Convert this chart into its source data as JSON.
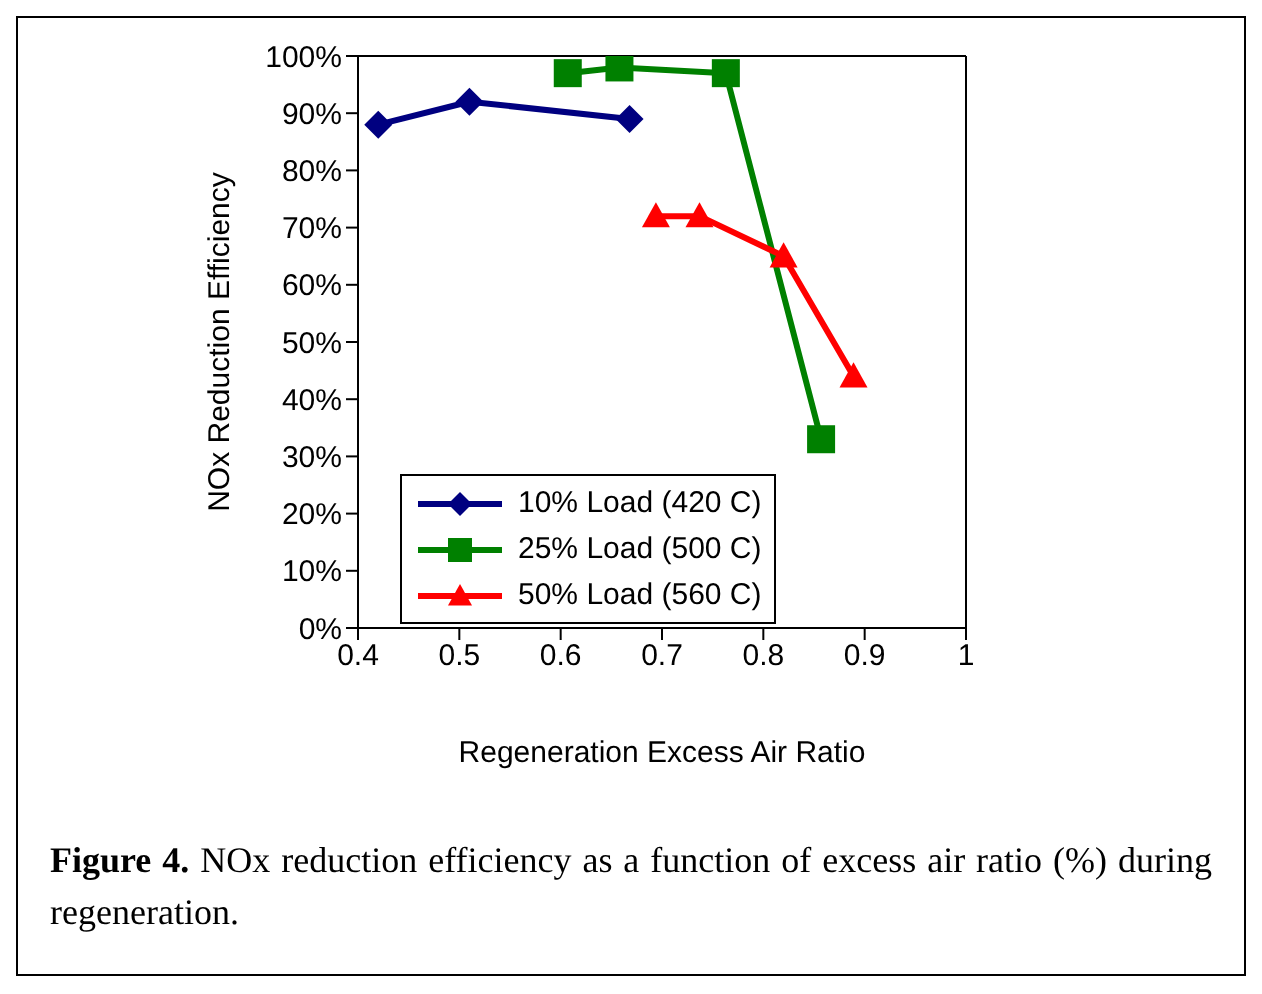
{
  "chart_data": {
    "type": "line",
    "xlabel": "Regeneration Excess Air Ratio",
    "ylabel": "NOx Reduction Efficiency",
    "series": [
      {
        "name": "10% Load (420 C)",
        "color": "#000080",
        "marker": "diamond",
        "x": [
          0.42,
          0.51,
          0.668
        ],
        "values": [
          88,
          92,
          89
        ]
      },
      {
        "name": "25% Load (500 C)",
        "color": "#008000",
        "marker": "square",
        "x": [
          0.607,
          0.658,
          0.763,
          0.857
        ],
        "values": [
          97,
          98,
          97,
          33
        ]
      },
      {
        "name": "50% Load (560 C)",
        "color": "#ff0000",
        "marker": "triangle",
        "x": [
          0.694,
          0.737,
          0.82,
          0.889
        ],
        "values": [
          72,
          72,
          65,
          44
        ]
      }
    ],
    "xlim": [
      0.4,
      1
    ],
    "xticks": [
      0.4,
      0.5,
      0.6,
      0.7,
      0.8,
      0.9,
      1
    ],
    "ylim": [
      0,
      100
    ],
    "yticks": [
      {
        "value": 0,
        "label": "0%"
      },
      {
        "value": 10,
        "label": "10%"
      },
      {
        "value": 20,
        "label": "20%"
      },
      {
        "value": 30,
        "label": "30%"
      },
      {
        "value": 40,
        "label": "40%"
      },
      {
        "value": 50,
        "label": "50%"
      },
      {
        "value": 60,
        "label": "60%"
      },
      {
        "value": 70,
        "label": "70%"
      },
      {
        "value": 80,
        "label": "80%"
      },
      {
        "value": 90,
        "label": "90%"
      },
      {
        "value": 100,
        "label": "100%"
      }
    ],
    "grid": false,
    "legend": "bottom left",
    "line_style": "solid",
    "annotations": [
      "Figure 4.  NOx reduction efficiency as a function of excess air ratio (%) during regeneration."
    ]
  }
}
